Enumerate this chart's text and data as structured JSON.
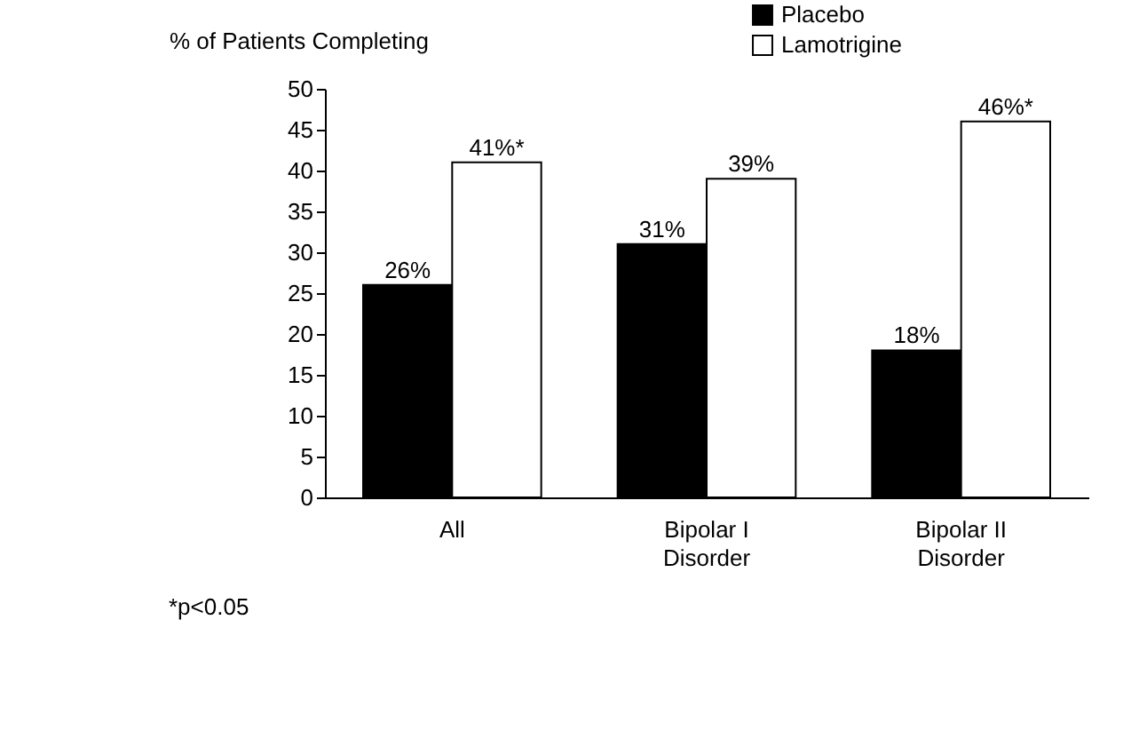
{
  "chart_data": {
    "type": "bar",
    "ylabel": "% of Patients Completing",
    "categories": [
      "All",
      "Bipolar I\nDisorder",
      "Bipolar II\nDisorder"
    ],
    "series": [
      {
        "name": "Placebo",
        "color": "#000000",
        "values": [
          26,
          31,
          18
        ],
        "value_labels": [
          "26%",
          "31%",
          "18%"
        ]
      },
      {
        "name": "Lamotrigine",
        "color": "#ffffff",
        "values": [
          41,
          39,
          46
        ],
        "value_labels": [
          "41%*",
          "39%",
          "46%*"
        ]
      }
    ],
    "ylim": [
      0,
      50
    ],
    "yticks": [
      0,
      5,
      10,
      15,
      20,
      25,
      30,
      35,
      40,
      45,
      50
    ],
    "grid": false,
    "legend": "top right",
    "annotations": [
      "*p<0.05"
    ]
  }
}
